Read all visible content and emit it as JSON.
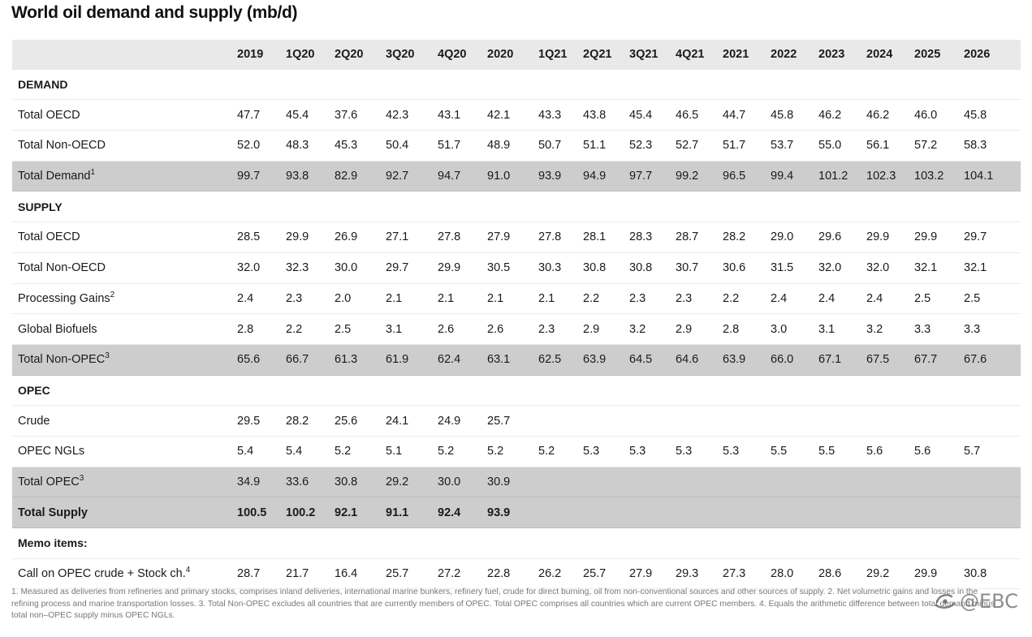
{
  "title": "World oil demand and supply (mb/d)",
  "header": {
    "blank": "",
    "columns": [
      "2019",
      "1Q20",
      "2Q20",
      "3Q20",
      "4Q20",
      "2020",
      "1Q21",
      "2Q21",
      "3Q21",
      "4Q21",
      "2021",
      "2022",
      "2023",
      "2024",
      "2025",
      "2026"
    ]
  },
  "rows": [
    {
      "label": "DEMAND",
      "kind": "section",
      "values": []
    },
    {
      "label": "Total OECD",
      "kind": "data",
      "values": [
        "47.7",
        "45.4",
        "37.6",
        "42.3",
        "43.1",
        "42.1",
        "43.3",
        "43.8",
        "45.4",
        "46.5",
        "44.7",
        "45.8",
        "46.2",
        "46.2",
        "46.0",
        "45.8"
      ]
    },
    {
      "label": "Total Non-OECD",
      "kind": "data",
      "values": [
        "52.0",
        "48.3",
        "45.3",
        "50.4",
        "51.7",
        "48.9",
        "50.7",
        "51.1",
        "52.3",
        "52.7",
        "51.7",
        "53.7",
        "55.0",
        "56.1",
        "57.2",
        "58.3"
      ]
    },
    {
      "label": "Total Demand",
      "sup": "1",
      "kind": "total",
      "values": [
        "99.7",
        "93.8",
        "82.9",
        "92.7",
        "94.7",
        "91.0",
        "93.9",
        "94.9",
        "97.7",
        "99.2",
        "96.5",
        "99.4",
        "101.2",
        "102.3",
        "103.2",
        "104.1"
      ]
    },
    {
      "label": "SUPPLY",
      "kind": "section",
      "values": []
    },
    {
      "label": "Total OECD",
      "kind": "data",
      "values": [
        "28.5",
        "29.9",
        "26.9",
        "27.1",
        "27.8",
        "27.9",
        "27.8",
        "28.1",
        "28.3",
        "28.7",
        "28.2",
        "29.0",
        "29.6",
        "29.9",
        "29.9",
        "29.7"
      ]
    },
    {
      "label": "Total Non-OECD",
      "kind": "data",
      "values": [
        "32.0",
        "32.3",
        "30.0",
        "29.7",
        "29.9",
        "30.5",
        "30.3",
        "30.8",
        "30.8",
        "30.7",
        "30.6",
        "31.5",
        "32.0",
        "32.0",
        "32.1",
        "32.1"
      ]
    },
    {
      "label": "Processing Gains",
      "sup": "2",
      "kind": "data",
      "values": [
        "2.4",
        "2.3",
        "2.0",
        "2.1",
        "2.1",
        "2.1",
        "2.1",
        "2.2",
        "2.3",
        "2.3",
        "2.2",
        "2.4",
        "2.4",
        "2.4",
        "2.5",
        "2.5"
      ]
    },
    {
      "label": "Global Biofuels",
      "kind": "data",
      "values": [
        "2.8",
        "2.2",
        "2.5",
        "3.1",
        "2.6",
        "2.6",
        "2.3",
        "2.9",
        "3.2",
        "2.9",
        "2.8",
        "3.0",
        "3.1",
        "3.2",
        "3.3",
        "3.3"
      ]
    },
    {
      "label": "Total Non-OPEC",
      "sup": "3",
      "kind": "total",
      "values": [
        "65.6",
        "66.7",
        "61.3",
        "61.9",
        "62.4",
        "63.1",
        "62.5",
        "63.9",
        "64.5",
        "64.6",
        "63.9",
        "66.0",
        "67.1",
        "67.5",
        "67.7",
        "67.6"
      ]
    },
    {
      "label": "OPEC",
      "kind": "section",
      "values": []
    },
    {
      "label": "Crude",
      "kind": "data",
      "values": [
        "29.5",
        "28.2",
        "25.6",
        "24.1",
        "24.9",
        "25.7",
        "",
        "",
        "",
        "",
        "",
        "",
        "",
        "",
        "",
        ""
      ]
    },
    {
      "label": "OPEC NGLs",
      "kind": "data",
      "values": [
        "5.4",
        "5.4",
        "5.2",
        "5.1",
        "5.2",
        "5.2",
        "5.2",
        "5.3",
        "5.3",
        "5.3",
        "5.3",
        "5.5",
        "5.5",
        "5.6",
        "5.6",
        "5.7"
      ]
    },
    {
      "label": "Total OPEC",
      "sup": "3",
      "kind": "total",
      "values": [
        "34.9",
        "33.6",
        "30.8",
        "29.2",
        "30.0",
        "30.9",
        "",
        "",
        "",
        "",
        "",
        "",
        "",
        "",
        "",
        ""
      ]
    },
    {
      "label": "Total Supply",
      "kind": "total-bold",
      "values": [
        "100.5",
        "100.2",
        "92.1",
        "91.1",
        "92.4",
        "93.9",
        "",
        "",
        "",
        "",
        "",
        "",
        "",
        "",
        "",
        ""
      ]
    },
    {
      "label": "Memo items:",
      "kind": "section",
      "values": []
    },
    {
      "label": "Call on OPEC crude + Stock ch.",
      "sup": "4",
      "kind": "data",
      "values": [
        "28.7",
        "21.7",
        "16.4",
        "25.7",
        "27.2",
        "22.8",
        "26.2",
        "25.7",
        "27.9",
        "29.3",
        "27.3",
        "28.0",
        "28.6",
        "29.2",
        "29.9",
        "30.8"
      ]
    }
  ],
  "footnote": "1. Measured as deliveries from refineries and primary stocks, comprises inland deliveries, international marine bunkers, refinery fuel, crude for direct burning, oil from non-conventional sources and other sources of supply. 2. Net volumetric gains and losses in the refining process and marine transportation losses. 3. Total Non-OPEC excludes all countries that are currently members of OPEC. Total OPEC comprises all countries which are current OPEC members. 4. Equals the arithmetic difference between total demand minus total non–OPEC supply minus OPEC NGLs.",
  "watermark": {
    "text": "@EBC",
    "icon": "ebc-logo-icon"
  }
}
